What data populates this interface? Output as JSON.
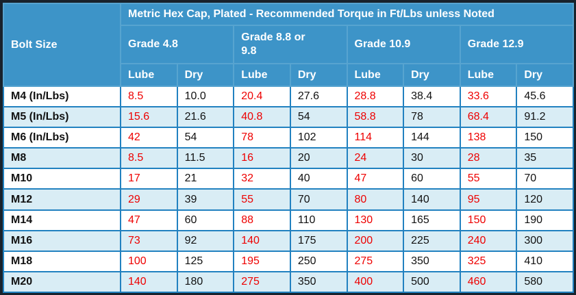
{
  "table": {
    "title": "Metric Hex Cap, Plated - Recommended Torque in Ft/Lbs unless Noted",
    "bolt_size_header": "Bolt Size",
    "grade_groups": [
      {
        "label": "Grade 4.8"
      },
      {
        "label": "Grade 8.8 or 9.8"
      },
      {
        "label": "Grade 10.9"
      },
      {
        "label": "Grade 12.9"
      }
    ],
    "sub_headers": [
      "Lube",
      "Dry"
    ],
    "rows": [
      {
        "bolt": "M4 (In/Lbs)",
        "values": [
          "8.5",
          "10.0",
          "20.4",
          "27.6",
          "28.8",
          "38.4",
          "33.6",
          "45.6"
        ]
      },
      {
        "bolt": "M5 (In/Lbs)",
        "values": [
          "15.6",
          "21.6",
          "40.8",
          "54",
          "58.8",
          "78",
          "68.4",
          "91.2"
        ]
      },
      {
        "bolt": "M6 (In/Lbs)",
        "values": [
          "42",
          "54",
          "78",
          "102",
          "114",
          "144",
          "138",
          "150"
        ]
      },
      {
        "bolt": "M8",
        "values": [
          "8.5",
          "11.5",
          "16",
          "20",
          "24",
          "30",
          "28",
          "35"
        ]
      },
      {
        "bolt": "M10",
        "values": [
          "17",
          "21",
          "32",
          "40",
          "47",
          "60",
          "55",
          "70"
        ]
      },
      {
        "bolt": "M12",
        "values": [
          "29",
          "39",
          "55",
          "70",
          "80",
          "140",
          "95",
          "120"
        ]
      },
      {
        "bolt": "M14",
        "values": [
          "47",
          "60",
          "88",
          "110",
          "130",
          "165",
          "150",
          "190"
        ]
      },
      {
        "bolt": "M16",
        "values": [
          "73",
          "92",
          "140",
          "175",
          "200",
          "225",
          "240",
          "300"
        ]
      },
      {
        "bolt": "M18",
        "values": [
          "100",
          "125",
          "195",
          "250",
          "275",
          "350",
          "325",
          "410"
        ]
      },
      {
        "bolt": "M20",
        "values": [
          "140",
          "180",
          "275",
          "350",
          "400",
          "500",
          "460",
          "580"
        ]
      }
    ]
  },
  "colors": {
    "header_bg": "#3d94c8",
    "row_bg": "#ffffff",
    "row_alt_bg": "#d9edf5",
    "grid_border": "#2181c0",
    "header_border": "#57a4d0",
    "outer_frame": "#18222c",
    "lube_text": "#ee0000",
    "dry_text": "#111111",
    "header_text": "#ffffff"
  }
}
